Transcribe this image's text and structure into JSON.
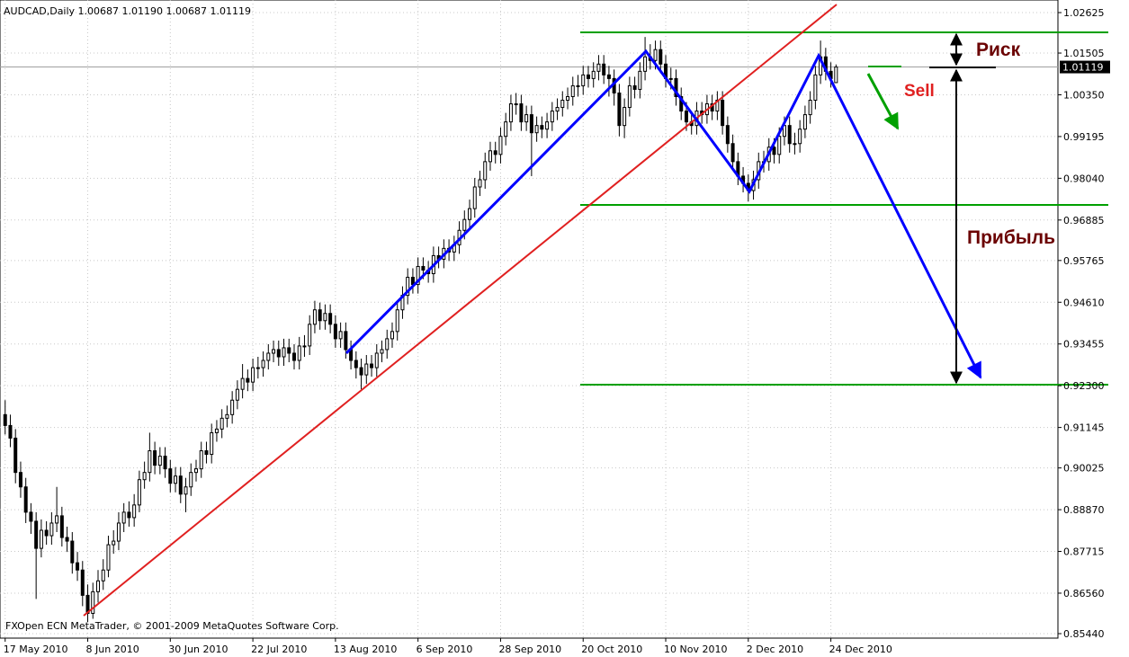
{
  "chart_data": {
    "type": "candlestick",
    "title": "AUDCAD,Daily  1.00687 1.01190 1.00687 1.01119",
    "watermark": "FXOpen ECN MetaTrader, © 2001-2009 MetaQuotes Software Corp.",
    "current_price": 1.01119,
    "up_color": "#ffffff",
    "down_color": "#000000",
    "grid": true,
    "xlim": [
      -1,
      204
    ],
    "xticks": [
      {
        "value": 0,
        "label": "17 May 2010"
      },
      {
        "value": 16,
        "label": "8 Jun 2010"
      },
      {
        "value": 32,
        "label": "30 Jun 2010"
      },
      {
        "value": 48,
        "label": "22 Jul 2010"
      },
      {
        "value": 64,
        "label": "13 Aug 2010"
      },
      {
        "value": 80,
        "label": "6 Sep 2010"
      },
      {
        "value": 96,
        "label": "28 Sep 2010"
      },
      {
        "value": 112,
        "label": "20 Oct 2010"
      },
      {
        "value": 128,
        "label": "10 Nov 2010"
      },
      {
        "value": 144,
        "label": "2 Dec 2010"
      },
      {
        "value": 160,
        "label": "24 Dec 2010"
      }
    ],
    "ylim": [
      0.8544,
      1.02625
    ],
    "yticks": [
      1.02625,
      1.01505,
      {
        "value": 1.0035,
        "label": "1.00350"
      },
      0.99195,
      {
        "value": 0.9804,
        "label": "0.98040"
      },
      0.96885,
      0.95765,
      {
        "value": 0.9461,
        "label": "0.94610"
      },
      0.93455,
      {
        "value": 0.923,
        "label": "0.92300"
      },
      0.91145,
      0.90025,
      {
        "value": 0.8887,
        "label": "0.88870"
      },
      0.87715,
      {
        "value": 0.8656,
        "label": "0.86560"
      },
      {
        "value": 0.8544,
        "label": "0.85440"
      }
    ],
    "annotations": {
      "risk": "Риск",
      "sell": "Sell",
      "profit": "Прибыль"
    },
    "candles": [
      [
        0.915,
        0.919,
        0.9095,
        0.912
      ],
      [
        0.912,
        0.915,
        0.906,
        0.9085
      ],
      [
        0.9085,
        0.911,
        0.896,
        0.899
      ],
      [
        0.899,
        0.902,
        0.892,
        0.895
      ],
      [
        0.895,
        0.8975,
        0.885,
        0.888
      ],
      [
        0.888,
        0.8905,
        0.882,
        0.8855
      ],
      [
        0.8855,
        0.888,
        0.864,
        0.878
      ],
      [
        0.878,
        0.886,
        0.8755,
        0.883
      ],
      [
        0.883,
        0.8855,
        0.879,
        0.8815
      ],
      [
        0.8815,
        0.888,
        0.879,
        0.885
      ],
      [
        0.885,
        0.895,
        0.8825,
        0.887
      ],
      [
        0.887,
        0.8895,
        0.8785,
        0.881
      ],
      [
        0.881,
        0.884,
        0.877,
        0.88
      ],
      [
        0.88,
        0.8825,
        0.871,
        0.874
      ],
      [
        0.874,
        0.877,
        0.869,
        0.872
      ],
      [
        0.872,
        0.8745,
        0.862,
        0.865
      ],
      [
        0.865,
        0.868,
        0.8576,
        0.86
      ],
      [
        0.86,
        0.8685,
        0.8585,
        0.866
      ],
      [
        0.866,
        0.872,
        0.863,
        0.869
      ],
      [
        0.869,
        0.875,
        0.8665,
        0.872
      ],
      [
        0.872,
        0.8815,
        0.87,
        0.879
      ],
      [
        0.879,
        0.883,
        0.8765,
        0.88
      ],
      [
        0.88,
        0.888,
        0.8775,
        0.885
      ],
      [
        0.885,
        0.8905,
        0.8825,
        0.888
      ],
      [
        0.888,
        0.891,
        0.884,
        0.8865
      ],
      [
        0.8865,
        0.893,
        0.884,
        0.89
      ],
      [
        0.89,
        0.8995,
        0.888,
        0.897
      ],
      [
        0.897,
        0.902,
        0.8945,
        0.899
      ],
      [
        0.899,
        0.91,
        0.8965,
        0.905
      ],
      [
        0.905,
        0.9075,
        0.8985,
        0.901
      ],
      [
        0.901,
        0.906,
        0.8985,
        0.9035
      ],
      [
        0.9035,
        0.906,
        0.8975,
        0.9
      ],
      [
        0.9,
        0.9025,
        0.8935,
        0.896
      ],
      [
        0.896,
        0.9005,
        0.8935,
        0.898
      ],
      [
        0.898,
        0.9005,
        0.8905,
        0.893
      ],
      [
        0.893,
        0.8975,
        0.888,
        0.895
      ],
      [
        0.895,
        0.9015,
        0.8925,
        0.899
      ],
      [
        0.899,
        0.9025,
        0.8965,
        0.9
      ],
      [
        0.9,
        0.9075,
        0.8975,
        0.905
      ],
      [
        0.905,
        0.9075,
        0.9015,
        0.904
      ],
      [
        0.904,
        0.9125,
        0.9015,
        0.91
      ],
      [
        0.91,
        0.9135,
        0.9075,
        0.911
      ],
      [
        0.911,
        0.9165,
        0.9085,
        0.914
      ],
      [
        0.914,
        0.9175,
        0.9115,
        0.915
      ],
      [
        0.915,
        0.9215,
        0.9125,
        0.919
      ],
      [
        0.919,
        0.9245,
        0.9165,
        0.922
      ],
      [
        0.922,
        0.929,
        0.9195,
        0.925
      ],
      [
        0.925,
        0.9275,
        0.9215,
        0.924
      ],
      [
        0.924,
        0.9305,
        0.9215,
        0.928
      ],
      [
        0.928,
        0.931,
        0.925,
        0.928
      ],
      [
        0.928,
        0.9325,
        0.9255,
        0.93
      ],
      [
        0.93,
        0.9345,
        0.9275,
        0.932
      ],
      [
        0.932,
        0.9355,
        0.9295,
        0.933
      ],
      [
        0.933,
        0.9355,
        0.9285,
        0.931
      ],
      [
        0.931,
        0.936,
        0.9285,
        0.9335
      ],
      [
        0.9335,
        0.936,
        0.9295,
        0.932
      ],
      [
        0.932,
        0.9345,
        0.9275,
        0.93
      ],
      [
        0.93,
        0.9365,
        0.9275,
        0.934
      ],
      [
        0.934,
        0.937,
        0.931,
        0.934
      ],
      [
        0.934,
        0.9425,
        0.9315,
        0.94
      ],
      [
        0.94,
        0.9465,
        0.9375,
        0.944
      ],
      [
        0.944,
        0.946,
        0.9385,
        0.941
      ],
      [
        0.941,
        0.9455,
        0.9385,
        0.943
      ],
      [
        0.943,
        0.9455,
        0.9375,
        0.94
      ],
      [
        0.94,
        0.9425,
        0.9335,
        0.936
      ],
      [
        0.936,
        0.9405,
        0.9335,
        0.938
      ],
      [
        0.938,
        0.9405,
        0.9305,
        0.933
      ],
      [
        0.933,
        0.9355,
        0.9275,
        0.93
      ],
      [
        0.93,
        0.9325,
        0.925,
        0.928
      ],
      [
        0.928,
        0.9305,
        0.922,
        0.926
      ],
      [
        0.926,
        0.9315,
        0.9235,
        0.929
      ],
      [
        0.929,
        0.9315,
        0.9255,
        0.928
      ],
      [
        0.928,
        0.9345,
        0.9255,
        0.932
      ],
      [
        0.932,
        0.9355,
        0.9295,
        0.933
      ],
      [
        0.933,
        0.9385,
        0.9305,
        0.936
      ],
      [
        0.936,
        0.9405,
        0.9335,
        0.938
      ],
      [
        0.938,
        0.9465,
        0.9355,
        0.944
      ],
      [
        0.944,
        0.9505,
        0.9415,
        0.948
      ],
      [
        0.948,
        0.9555,
        0.9455,
        0.953
      ],
      [
        0.953,
        0.9555,
        0.9485,
        0.951
      ],
      [
        0.951,
        0.9585,
        0.9485,
        0.956
      ],
      [
        0.956,
        0.9585,
        0.9525,
        0.955
      ],
      [
        0.955,
        0.9575,
        0.9515,
        0.954
      ],
      [
        0.954,
        0.9615,
        0.9515,
        0.959
      ],
      [
        0.959,
        0.9615,
        0.9555,
        0.958
      ],
      [
        0.958,
        0.9635,
        0.9555,
        0.961
      ],
      [
        0.961,
        0.9635,
        0.9575,
        0.96
      ],
      [
        0.96,
        0.9645,
        0.9575,
        0.962
      ],
      [
        0.962,
        0.9685,
        0.9595,
        0.966
      ],
      [
        0.966,
        0.9715,
        0.9635,
        0.969
      ],
      [
        0.969,
        0.9745,
        0.9665,
        0.972
      ],
      [
        0.972,
        0.9805,
        0.9695,
        0.978
      ],
      [
        0.978,
        0.9825,
        0.9755,
        0.98
      ],
      [
        0.98,
        0.9875,
        0.9775,
        0.985
      ],
      [
        0.985,
        0.9905,
        0.9825,
        0.988
      ],
      [
        0.988,
        0.9905,
        0.9845,
        0.987
      ],
      [
        0.987,
        0.9945,
        0.9845,
        0.992
      ],
      [
        0.992,
        0.9985,
        0.9895,
        0.996
      ],
      [
        0.996,
        1.0035,
        0.9935,
        1.001
      ],
      [
        1.001,
        1.004,
        0.998,
        1.001
      ],
      [
        1.001,
        1.0035,
        0.9935,
        0.996
      ],
      [
        0.996,
        1.0005,
        0.9935,
        0.998
      ],
      [
        0.998,
        1.0005,
        0.981,
        0.993
      ],
      [
        0.993,
        0.9975,
        0.9905,
        0.995
      ],
      [
        0.995,
        0.9975,
        0.9915,
        0.994
      ],
      [
        0.994,
        0.9985,
        0.9915,
        0.996
      ],
      [
        0.996,
        1.0015,
        0.9935,
        0.999
      ],
      [
        0.999,
        1.0025,
        0.9965,
        1.0
      ],
      [
        1.0,
        1.0045,
        0.9975,
        1.002
      ],
      [
        1.002,
        1.0055,
        0.9995,
        1.003
      ],
      [
        1.003,
        1.0085,
        1.0005,
        1.006
      ],
      [
        1.006,
        1.009,
        1.003,
        1.006
      ],
      [
        1.006,
        1.0115,
        1.0035,
        1.009
      ],
      [
        1.009,
        1.0115,
        1.0055,
        1.008
      ],
      [
        1.008,
        1.0125,
        1.0055,
        1.01
      ],
      [
        1.01,
        1.0145,
        1.0075,
        1.012
      ],
      [
        1.012,
        1.0145,
        1.0065,
        1.009
      ],
      [
        1.009,
        1.0115,
        1.003,
        1.008
      ],
      [
        1.008,
        1.0105,
        1.0005,
        1.004
      ],
      [
        1.004,
        1.0065,
        0.992,
        0.995
      ],
      [
        0.995,
        1.0025,
        0.9915,
        1.0
      ],
      [
        1.0,
        1.0085,
        0.9975,
        1.006
      ],
      [
        1.006,
        1.0085,
        1.0025,
        1.005
      ],
      [
        1.005,
        1.0125,
        1.0025,
        1.01
      ],
      [
        1.01,
        1.0195,
        1.0075,
        1.014
      ],
      [
        1.014,
        1.0175,
        1.0105,
        1.013
      ],
      [
        1.013,
        1.0185,
        1.0105,
        1.016
      ],
      [
        1.016,
        1.0185,
        1.0095,
        1.012
      ],
      [
        1.012,
        1.0145,
        1.0055,
        1.008
      ],
      [
        1.008,
        1.011,
        1.005,
        1.008
      ],
      [
        1.008,
        1.0105,
        1.0005,
        1.003
      ],
      [
        1.003,
        1.0055,
        0.9965,
        0.999
      ],
      [
        0.999,
        1.0015,
        0.9935,
        0.996
      ],
      [
        0.996,
        0.9985,
        0.9925,
        0.995
      ],
      [
        0.995,
        1.0015,
        0.9925,
        0.999
      ],
      [
        0.999,
        1.0015,
        0.9955,
        0.998
      ],
      [
        0.998,
        1.0035,
        0.9955,
        1.001
      ],
      [
        1.001,
        1.0035,
        0.9965,
        0.999
      ],
      [
        0.999,
        1.0045,
        0.9965,
        1.002
      ],
      [
        1.002,
        1.0045,
        0.9925,
        0.995
      ],
      [
        0.995,
        0.9975,
        0.9875,
        0.99
      ],
      [
        0.99,
        0.9925,
        0.9825,
        0.985
      ],
      [
        0.985,
        0.9875,
        0.9785,
        0.981
      ],
      [
        0.981,
        0.9835,
        0.9765,
        0.979
      ],
      [
        0.979,
        0.9815,
        0.974,
        0.977
      ],
      [
        0.977,
        0.9825,
        0.9745,
        0.98
      ],
      [
        0.98,
        0.9875,
        0.9775,
        0.985
      ],
      [
        0.985,
        0.988,
        0.982,
        0.985
      ],
      [
        0.985,
        0.9915,
        0.9825,
        0.989
      ],
      [
        0.989,
        0.9915,
        0.9845,
        0.987
      ],
      [
        0.987,
        0.9945,
        0.9845,
        0.992
      ],
      [
        0.992,
        0.9975,
        0.9895,
        0.995
      ],
      [
        0.995,
        0.9975,
        0.9875,
        0.99
      ],
      [
        0.99,
        0.993,
        0.987,
        0.99
      ],
      [
        0.99,
        0.9965,
        0.9875,
        0.994
      ],
      [
        0.994,
        1.0005,
        0.9915,
        0.998
      ],
      [
        0.998,
        1.0045,
        0.9955,
        1.002
      ],
      [
        1.002,
        1.0115,
        0.9995,
        1.009
      ],
      [
        1.009,
        1.0185,
        1.0065,
        1.014
      ],
      [
        1.014,
        1.0165,
        1.0075,
        1.01
      ],
      [
        1.01,
        1.0125,
        1.0055,
        1.008
      ],
      [
        1.00687,
        1.0119,
        1.00687,
        1.01119
      ]
    ]
  }
}
